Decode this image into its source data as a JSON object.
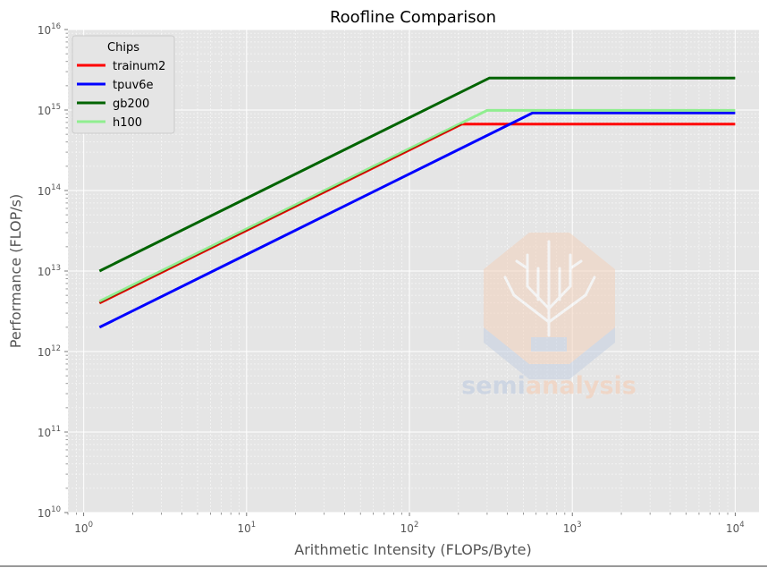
{
  "chart_data": {
    "type": "line",
    "title": "Roofline Comparison",
    "xlabel": "Arithmetic Intensity (FLOPs/Byte)",
    "ylabel": "Performance (FLOP/s)",
    "xscale": "log",
    "yscale": "log",
    "xlim": [
      0.8,
      14000
    ],
    "ylim": [
      10000000000.0,
      1e+16
    ],
    "grid": true,
    "legend": {
      "title": "Chips",
      "placement": "top-left"
    },
    "x_ticks": [
      {
        "base": "10",
        "exp": "0",
        "value": 1
      },
      {
        "base": "10",
        "exp": "1",
        "value": 10
      },
      {
        "base": "10",
        "exp": "2",
        "value": 100
      },
      {
        "base": "10",
        "exp": "3",
        "value": 1000
      },
      {
        "base": "10",
        "exp": "4",
        "value": 10000
      }
    ],
    "y_ticks": [
      {
        "base": "10",
        "exp": "10",
        "value": 10000000000.0
      },
      {
        "base": "10",
        "exp": "11",
        "value": 100000000000.0
      },
      {
        "base": "10",
        "exp": "12",
        "value": 1000000000000.0
      },
      {
        "base": "10",
        "exp": "13",
        "value": 10000000000000.0
      },
      {
        "base": "10",
        "exp": "14",
        "value": 100000000000000.0
      },
      {
        "base": "10",
        "exp": "15",
        "value": 1000000000000000.0
      },
      {
        "base": "10",
        "exp": "16",
        "value": 1e+16
      }
    ],
    "series": [
      {
        "name": "trainum2",
        "color": "#ff0000",
        "x": [
          1.25,
          210,
          10000
        ],
        "y": [
          4000000000000.0,
          670000000000000.0,
          670000000000000.0
        ]
      },
      {
        "name": "tpuv6e",
        "color": "#0000ff",
        "x": [
          1.25,
          570,
          10000
        ],
        "y": [
          2000000000000.0,
          920000000000000.0,
          920000000000000.0
        ]
      },
      {
        "name": "gb200",
        "color": "#006400",
        "x": [
          1.25,
          310,
          10000
        ],
        "y": [
          10000000000000.0,
          2500000000000000.0,
          2500000000000000.0
        ]
      },
      {
        "name": "h100",
        "color": "#90ee90",
        "x": [
          1.25,
          300,
          10000
        ],
        "y": [
          4200000000000.0,
          990000000000000.0,
          990000000000000.0
        ]
      }
    ]
  },
  "watermark": {
    "part1": "semi",
    "part2": "analysis",
    "icon": "circuit-tree-octagon-icon",
    "color1": "#c5d0e2",
    "color2": "#f3d2bd"
  }
}
